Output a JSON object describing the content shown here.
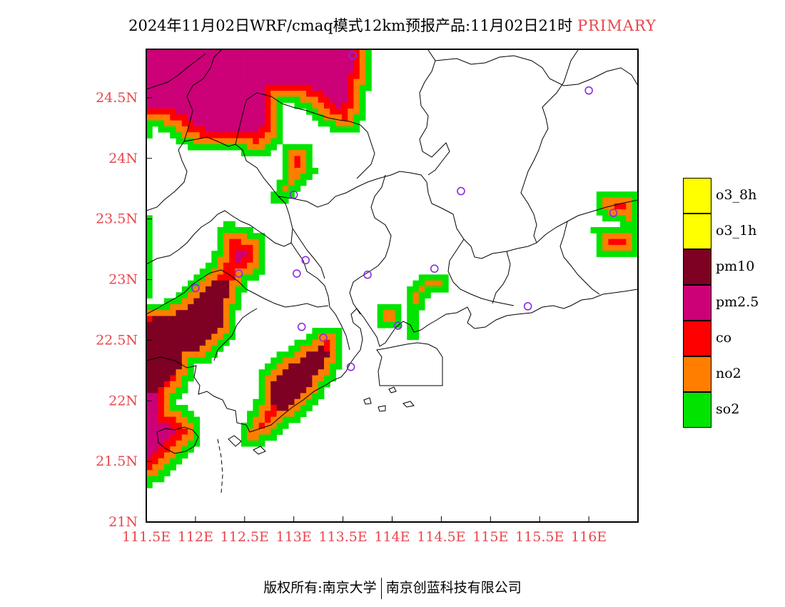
{
  "header": {
    "title": "2024年11月02日WRF/cmaq模式12km预报产品:11月02日21时",
    "tag": "PRIMARY"
  },
  "map": {
    "lon_range": [
      111.5,
      116.5
    ],
    "lat_range": [
      21,
      24.9
    ],
    "lon_ticks": [
      {
        "value": 111.5,
        "label": "111.5E"
      },
      {
        "value": 112,
        "label": "112E"
      },
      {
        "value": 112.5,
        "label": "112.5E"
      },
      {
        "value": 113,
        "label": "113E"
      },
      {
        "value": 113.5,
        "label": "113.5E"
      },
      {
        "value": 114,
        "label": "114E"
      },
      {
        "value": 114.5,
        "label": "114.5E"
      },
      {
        "value": 115,
        "label": "115E"
      },
      {
        "value": 115.5,
        "label": "115.5E"
      },
      {
        "value": 116,
        "label": "116E"
      }
    ],
    "lat_ticks": [
      {
        "value": 21,
        "label": "21N"
      },
      {
        "value": 21.5,
        "label": "21.5N"
      },
      {
        "value": 22,
        "label": "22N"
      },
      {
        "value": 22.5,
        "label": "22.5N"
      },
      {
        "value": 23,
        "label": "23N"
      },
      {
        "value": 23.5,
        "label": "23.5N"
      },
      {
        "value": 24,
        "label": "24N"
      },
      {
        "value": 24.5,
        "label": "24.5N"
      }
    ],
    "pollutant_colors": {
      "so2": "#00e400",
      "no2": "#ff7e00",
      "co": "#ff0000",
      "pm2.5": "#cc0077",
      "pm10": "#7e0023",
      "o3_1h": "#ffff00",
      "o3_8h": "#ffff00"
    },
    "stations": [
      {
        "lon": 113.6,
        "lat": 24.85
      },
      {
        "lon": 116.0,
        "lat": 24.56
      },
      {
        "lon": 113.0,
        "lat": 23.7
      },
      {
        "lon": 114.7,
        "lat": 23.73
      },
      {
        "lon": 116.25,
        "lat": 23.55
      },
      {
        "lon": 113.12,
        "lat": 23.16
      },
      {
        "lon": 113.03,
        "lat": 23.05
      },
      {
        "lon": 113.75,
        "lat": 23.04
      },
      {
        "lon": 114.43,
        "lat": 23.09
      },
      {
        "lon": 112.44,
        "lat": 23.05
      },
      {
        "lon": 112.0,
        "lat": 22.93
      },
      {
        "lon": 115.38,
        "lat": 22.78
      },
      {
        "lon": 113.08,
        "lat": 22.61
      },
      {
        "lon": 114.06,
        "lat": 22.62
      },
      {
        "lon": 113.3,
        "lat": 22.52
      },
      {
        "lon": 113.58,
        "lat": 22.28
      }
    ]
  },
  "legend": {
    "items": [
      {
        "label": "o3_8h",
        "color": "#ffff00"
      },
      {
        "label": "o3_1h",
        "color": "#ffff00"
      },
      {
        "label": "pm10",
        "color": "#7e0023"
      },
      {
        "label": "pm2.5",
        "color": "#cc0077"
      },
      {
        "label": "co",
        "color": "#ff0000"
      },
      {
        "label": "no2",
        "color": "#ff7e00"
      },
      {
        "label": "so2",
        "color": "#00e400"
      }
    ]
  },
  "footer": {
    "left": "版权所有:南京大学",
    "right": "南京创蓝科技有限公司"
  }
}
